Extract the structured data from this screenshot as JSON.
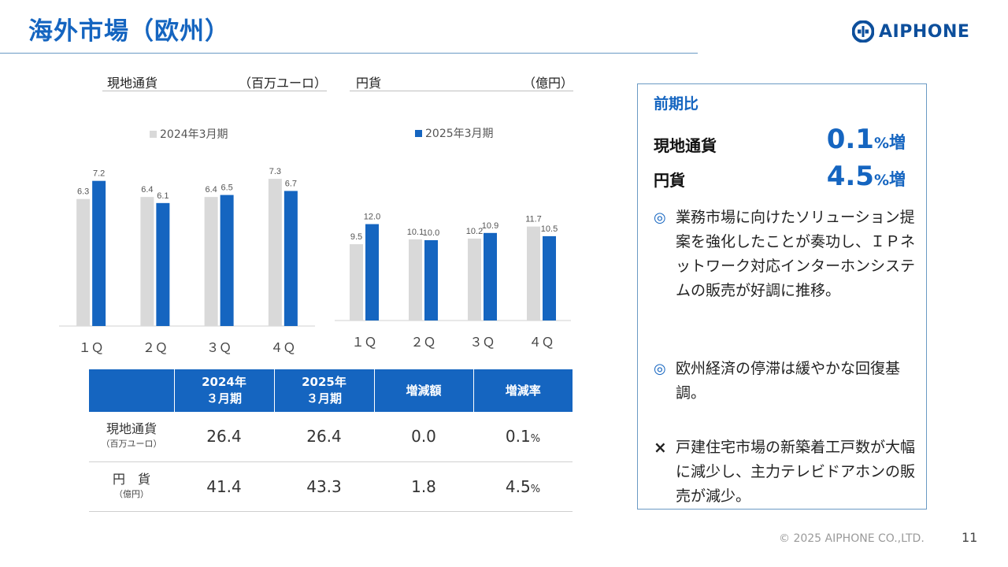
{
  "title": "海外市場（欧州）",
  "logo": "AIPHONE",
  "panels": [
    {
      "left": "現地通貨",
      "right": "（百万ユーロ）"
    },
    {
      "left": "円貨",
      "right": "（億円）"
    }
  ],
  "legend_left": "2024年3月期",
  "legend_right": "2025年3月期",
  "colors": {
    "prev": "#d9d9d9",
    "curr": "#1565c0",
    "accent": "#1565c0"
  },
  "chart_data": [
    {
      "type": "bar",
      "title": "現地通貨",
      "unit": "（百万ユーロ）",
      "categories": [
        "１Ｑ",
        "２Ｑ",
        "３Ｑ",
        "４Ｑ"
      ],
      "series": [
        {
          "name": "2024年3月期",
          "values": [
            6.3,
            6.4,
            6.4,
            7.3
          ]
        },
        {
          "name": "2025年3月期",
          "values": [
            7.2,
            6.1,
            6.5,
            6.7
          ]
        }
      ],
      "legend": "2024年3月期"
    },
    {
      "type": "bar",
      "title": "円貨",
      "unit": "（億円）",
      "categories": [
        "１Ｑ",
        "２Ｑ",
        "３Ｑ",
        "４Ｑ"
      ],
      "series": [
        {
          "name": "2024年3月期",
          "values": [
            9.5,
            10.1,
            10.2,
            11.7
          ]
        },
        {
          "name": "2025年3月期",
          "values": [
            12.0,
            10.0,
            10.9,
            10.5
          ]
        }
      ],
      "legend": "2025年3月期"
    }
  ],
  "table": {
    "headers": [
      "",
      "2024年\n３月期",
      "2025年\n３月期",
      "増減額",
      "増減率"
    ],
    "rows": [
      {
        "label": "現地通貨",
        "sub": "（百万ユーロ）",
        "v1": "26.4",
        "v2": "26.4",
        "diff": "0.0",
        "rate": "0.1",
        "pct": "%"
      },
      {
        "label": "円　貨",
        "sub": "（億円）",
        "v1": "41.4",
        "v2": "43.3",
        "diff": "1.8",
        "rate": "4.5",
        "pct": "%"
      }
    ]
  },
  "side": {
    "compare_title": "前期比",
    "rows": [
      {
        "label": "現地通貨",
        "value": "0.1",
        "pct": "%",
        "up": "増"
      },
      {
        "label": "円貨",
        "value": "4.5",
        "pct": "%",
        "up": "増"
      }
    ],
    "bullets": [
      {
        "mark": "◎",
        "text": "業務市場に向けたソリューション提案を強化したことが奏功し、ＩＰネットワーク対応インターホンシステムの販売が好調に推移。"
      },
      {
        "mark": "◎",
        "text": "欧州経済の停滞は緩やかな回復基調。"
      },
      {
        "mark": "×",
        "text": "戸建住宅市場の新築着工戸数が大幅に減少し、主力テレビドアホンの販売が減少。"
      }
    ]
  },
  "footer": "© 2025 AIPHONE CO.,LTD.",
  "page_number": "11"
}
